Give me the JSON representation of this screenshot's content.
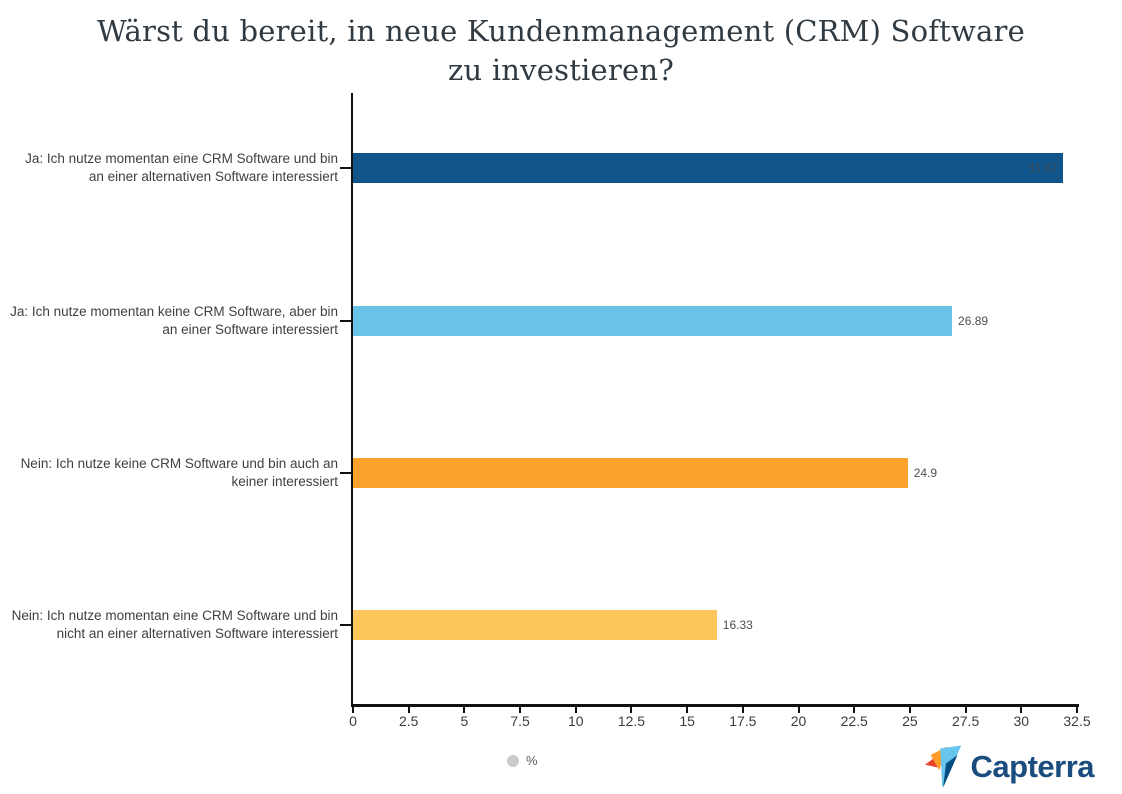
{
  "title": {
    "lines": [
      "Wärst du bereit, in neue Kundenmanagement (CRM) Software",
      "zu investieren?"
    ]
  },
  "chart_data": {
    "type": "bar",
    "orientation": "horizontal",
    "title": "Wärst du bereit, in neue Kundenmanagement (CRM) Software zu investieren?",
    "categories": [
      "Ja: Ich nutze momentan eine CRM Software und bin an einer alternativen Software interessiert",
      "Ja: Ich nutze momentan keine CRM Software, aber bin an einer Software interessiert",
      "Nein: Ich nutze keine CRM Software und bin auch an keiner interessiert",
      "Nein: Ich nutze momentan eine CRM Software und bin nicht an einer alternativen Software interessiert"
    ],
    "values": [
      31.87,
      26.89,
      24.9,
      16.33
    ],
    "value_labels": [
      "31.87",
      "26.89",
      "24.9",
      "16.33"
    ],
    "bar_colors": [
      "#0F548B",
      "#69C3E8",
      "#FCA22C",
      "#FDC75B"
    ],
    "xlabel": "",
    "ylabel": "",
    "xlim": [
      0,
      32.5
    ],
    "xticks": [
      0,
      2.5,
      5,
      7.5,
      10,
      12.5,
      15,
      17.5,
      20,
      22.5,
      25,
      27.5,
      30,
      32.5
    ],
    "unit": "%",
    "grid": false,
    "legend": {
      "position": "bottom",
      "entries": [
        "%"
      ]
    }
  },
  "legend": {
    "label": "%",
    "marker_color": "#CBCBCB"
  },
  "branding": {
    "name": "Capterra",
    "text_color": "#1A4C7E",
    "icon_colors": {
      "red": "#E8432D",
      "orange": "#FF9D28",
      "light_blue": "#68C5ED",
      "dark_blue": "#044D80"
    }
  }
}
